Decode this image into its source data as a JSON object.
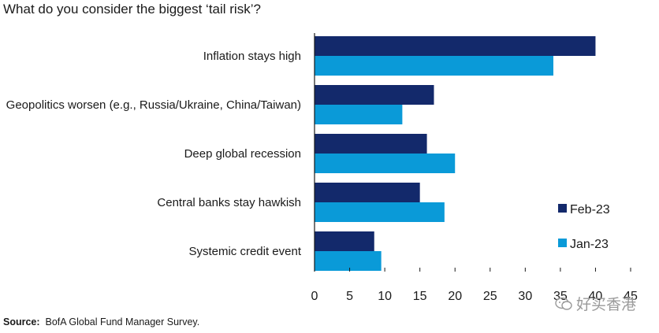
{
  "title": "What do you consider the biggest ‘tail risk’?",
  "source": {
    "label": "Source:",
    "text": "BofA Global Fund Manager Survey."
  },
  "watermark": {
    "text": "好买香港",
    "icon": "wechat-icon"
  },
  "colors": {
    "feb": "#13296b",
    "jan": "#0a9ad8",
    "axis": "#1a1a1a"
  },
  "chart_data": {
    "type": "bar",
    "orientation": "horizontal",
    "title": "What do you consider the biggest ‘tail risk’?",
    "categories": [
      "Inflation stays high",
      "Geopolitics worsen (e.g., Russia/Ukraine, China/Taiwan)",
      "Deep global recession",
      "Central banks stay hawkish",
      "Systemic credit event"
    ],
    "series": [
      {
        "name": "Feb-23",
        "color": "#13296b",
        "values": [
          40,
          17,
          16,
          15,
          8.5
        ]
      },
      {
        "name": "Jan-23",
        "color": "#0a9ad8",
        "values": [
          34,
          12.5,
          20,
          18.5,
          9.5
        ]
      }
    ],
    "xlim": [
      0,
      45
    ],
    "xticks": [
      0,
      5,
      10,
      15,
      20,
      25,
      30,
      35,
      40,
      45
    ],
    "xlabel": "",
    "ylabel": "",
    "grid": false,
    "legend_position": "right"
  }
}
